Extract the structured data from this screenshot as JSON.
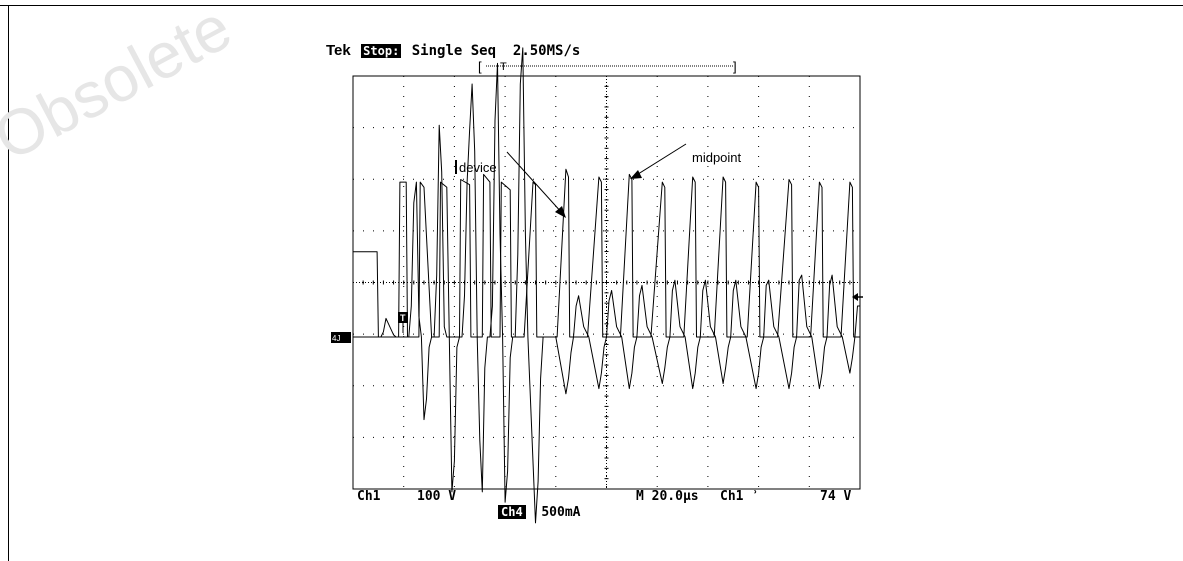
{
  "watermark": "Obsolete",
  "scope": {
    "brand": "Tek",
    "state": "Stop:",
    "acq_mode": "Single Seq",
    "sample_rate": "2.50MS/s",
    "ch1_label": "Ch1",
    "ch1_scale": "100 V",
    "ch4_label": "Ch4",
    "ch4_scale": "500mA",
    "timebase": "M 20.0µs",
    "trigger_source": "Ch1",
    "trigger_level": "74 V",
    "trigger_marker": "T",
    "ch4_marker": "4J",
    "annotation_device": "device",
    "annotation_midpoint": "midpoint"
  },
  "chart_data": {
    "type": "line",
    "title": "",
    "xlabel": "",
    "ylabel": "",
    "grid": true,
    "x_divisions": 10,
    "y_divisions": 8,
    "xlim": [
      0,
      200
    ],
    "series": [
      {
        "name": "midpoint",
        "unit": "V",
        "baseline_level": 0,
        "x": [
          0,
          9.5,
          10,
          14,
          18,
          18.5,
          21,
          21.5,
          25,
          26,
          26.5,
          28,
          31,
          31.5,
          34,
          34.5,
          37,
          38,
          38.5,
          42,
          42.5,
          46,
          46.5,
          50,
          51,
          51.5,
          54,
          54.5,
          57,
          58,
          58.5,
          62,
          62.5,
          67,
          67.5,
          71,
          72,
          72.5,
          80,
          80.5,
          84,
          85,
          85.5,
          92,
          92.5,
          97,
          98,
          98.5,
          105,
          105.5,
          109,
          110,
          110.5,
          117,
          117.5,
          122,
          123,
          123.5,
          130,
          130.5,
          134,
          135,
          135.5,
          142,
          142.5,
          146,
          147,
          147.5,
          155,
          155.5,
          159,
          160,
          160.5,
          167,
          167.5,
          172,
          173,
          173.5,
          180,
          180.5,
          184,
          185,
          185.5,
          192,
          192.5,
          196,
          197,
          197.5,
          200
        ],
        "y": [
          165,
          165,
          0,
          0,
          0,
          300,
          300,
          0,
          0,
          0,
          300,
          290,
          0,
          0,
          0,
          300,
          290,
          0,
          0,
          0,
          305,
          295,
          0,
          0,
          0,
          315,
          300,
          0,
          0,
          0,
          300,
          285,
          0,
          0,
          0,
          300,
          295,
          0,
          0,
          0,
          325,
          310,
          0,
          0,
          0,
          310,
          300,
          0,
          0,
          0,
          315,
          305,
          0,
          0,
          0,
          300,
          290,
          0,
          0,
          0,
          310,
          300,
          0,
          0,
          0,
          310,
          300,
          0,
          0,
          0,
          300,
          290,
          0,
          0,
          0,
          305,
          295,
          0,
          0,
          0,
          300,
          290,
          0,
          0,
          0,
          300,
          290,
          0,
          0
        ]
      },
      {
        "name": "device",
        "unit": "A",
        "x": [
          0,
          11,
          12,
          13,
          14.5,
          16,
          17,
          18,
          19,
          20,
          22,
          23,
          24,
          25,
          26,
          27,
          28,
          29,
          30,
          31,
          32,
          33,
          34,
          35,
          36,
          37,
          38,
          39,
          40,
          41,
          42,
          43,
          44,
          45,
          46,
          47,
          48,
          49,
          50,
          51,
          52,
          53,
          54,
          55,
          56,
          57,
          58,
          59,
          60,
          61,
          62,
          63,
          64,
          65,
          66,
          67,
          68,
          69,
          72,
          73,
          74,
          75,
          76,
          77,
          78,
          80,
          84,
          85,
          86,
          87,
          88,
          89,
          91,
          93,
          97,
          98,
          99,
          100,
          101,
          102,
          104,
          106,
          109,
          110,
          111,
          112,
          113,
          114,
          116,
          118,
          122,
          123,
          124,
          125,
          126,
          127,
          129,
          131,
          134,
          135,
          136,
          137,
          138,
          139,
          141,
          143,
          146,
          147,
          148,
          149,
          150,
          151,
          153,
          155,
          159,
          160,
          161,
          162,
          163,
          164,
          166,
          168,
          172,
          173,
          174,
          175,
          176,
          177,
          179,
          181,
          184,
          185,
          186,
          187,
          188,
          189,
          191,
          193,
          196,
          197,
          198,
          199,
          200
        ],
        "y": [
          0,
          0,
          0.05,
          0.18,
          0.1,
          0.02,
          0,
          0,
          0,
          0,
          0,
          0.3,
          1.3,
          1.5,
          0.2,
          0,
          -0.8,
          -0.6,
          -0.1,
          0,
          0,
          0.6,
          2.05,
          1.6,
          0.1,
          0,
          0,
          -1.5,
          -1.2,
          -0.1,
          0,
          0,
          0.4,
          1.5,
          2.0,
          2.45,
          1.8,
          0,
          -1.0,
          -1.5,
          -0.3,
          0,
          0,
          0.3,
          2.1,
          2.65,
          1.0,
          0,
          -1.6,
          -1.3,
          -0.2,
          0,
          0,
          0.8,
          2.45,
          2.8,
          1.0,
          0,
          -1.8,
          -1.4,
          -0.4,
          0,
          0,
          0,
          0,
          0,
          -0.55,
          -0.4,
          -0.15,
          0,
          0.3,
          0.4,
          0.1,
          0,
          -0.5,
          -0.35,
          -0.1,
          0,
          0.35,
          0.45,
          0.1,
          0,
          -0.5,
          -0.35,
          -0.1,
          0,
          0.4,
          0.5,
          0.1,
          0,
          -0.45,
          -0.3,
          -0.1,
          0,
          0.45,
          0.55,
          0.1,
          0,
          -0.5,
          -0.35,
          -0.1,
          0,
          0.45,
          0.55,
          0.1,
          0,
          -0.45,
          -0.3,
          -0.1,
          0,
          0.45,
          0.55,
          0.1,
          0,
          -0.5,
          -0.35,
          -0.1,
          0,
          0.5,
          0.55,
          0.1,
          0,
          -0.5,
          -0.35,
          -0.1,
          0,
          0.55,
          0.6,
          0.1,
          0,
          -0.5,
          -0.35,
          -0.1,
          0,
          0.5,
          0.6,
          0.1,
          0,
          -0.35,
          -0.2,
          0,
          0.3,
          0.3
        ]
      }
    ]
  }
}
